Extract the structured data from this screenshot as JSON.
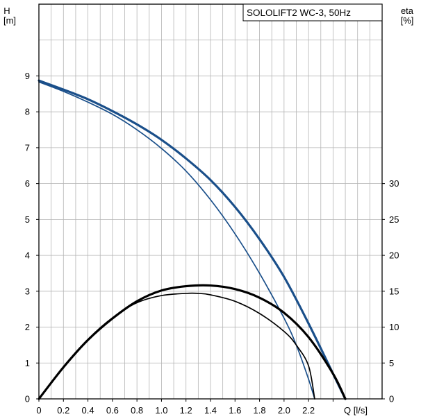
{
  "chart_data": {
    "type": "line",
    "title": "SOLOLIFT2 WC-3, 50Hz",
    "xlabel": "Q [l/s]",
    "ylabel_left": [
      "H",
      "[m]"
    ],
    "ylabel_right": [
      "eta",
      "[%]"
    ],
    "xlim": [
      0,
      2.8
    ],
    "ylim_left": [
      0,
      11
    ],
    "ylim_right": [
      0,
      55
    ],
    "x_ticks": [
      "0",
      "0.2",
      "0.4",
      "0.6",
      "0.8",
      "1.0",
      "1.2",
      "1.4",
      "1.6",
      "1.8",
      "2.0",
      "2.2",
      "2.4"
    ],
    "x_tick_values": [
      0,
      0.2,
      0.4,
      0.6,
      0.8,
      1.0,
      1.2,
      1.4,
      1.6,
      1.8,
      2.0,
      2.2,
      2.4
    ],
    "x_label_hidden_ticks": [
      "2.4"
    ],
    "y_ticks_left": [
      "0",
      "1",
      "2",
      "3",
      "4",
      "5",
      "6",
      "7",
      "8",
      "9"
    ],
    "y_tick_values_left": [
      0,
      1,
      2,
      3,
      4,
      5,
      6,
      7,
      8,
      9
    ],
    "y_ticks_right": [
      "0",
      "5",
      "10",
      "15",
      "20",
      "25",
      "30"
    ],
    "y_tick_values_right": [
      0,
      5,
      10,
      15,
      20,
      25,
      30
    ],
    "grid": true,
    "colors": {
      "head": "#1a4f8a",
      "efficiency": "#000000",
      "grid": "#b4b4b4"
    },
    "series": [
      {
        "axis": "left",
        "kind": "head",
        "weight": "thick",
        "x": [
          0,
          0.2,
          0.4,
          0.6,
          0.8,
          1.0,
          1.2,
          1.4,
          1.6,
          1.8,
          2.0,
          2.2,
          2.4,
          2.5
        ],
        "y": [
          8.87,
          8.62,
          8.35,
          8.02,
          7.65,
          7.22,
          6.7,
          6.1,
          5.35,
          4.45,
          3.4,
          2.1,
          0.7,
          0.0
        ]
      },
      {
        "axis": "left",
        "kind": "head",
        "weight": "thin",
        "x": [
          0,
          0.2,
          0.4,
          0.6,
          0.8,
          1.0,
          1.2,
          1.4,
          1.6,
          1.8,
          2.0,
          2.1,
          2.2,
          2.25
        ],
        "y": [
          8.83,
          8.57,
          8.27,
          7.93,
          7.5,
          6.98,
          6.35,
          5.55,
          4.6,
          3.5,
          2.25,
          1.5,
          0.55,
          0.0
        ]
      },
      {
        "axis": "right",
        "kind": "efficiency",
        "weight": "thick",
        "x": [
          0,
          0.2,
          0.4,
          0.6,
          0.8,
          1.0,
          1.2,
          1.4,
          1.6,
          1.8,
          2.0,
          2.2,
          2.4,
          2.5
        ],
        "y": [
          0,
          4.4,
          8.2,
          11.2,
          13.6,
          15.1,
          15.7,
          15.8,
          15.3,
          14.1,
          12.0,
          8.6,
          3.5,
          0.0
        ]
      },
      {
        "axis": "right",
        "kind": "efficiency",
        "weight": "thin",
        "x": [
          0,
          0.2,
          0.4,
          0.6,
          0.8,
          1.0,
          1.2,
          1.3,
          1.4,
          1.6,
          1.8,
          2.0,
          2.1,
          2.2,
          2.25
        ],
        "y": [
          0,
          4.5,
          8.3,
          11.3,
          13.4,
          14.4,
          14.7,
          14.7,
          14.5,
          13.6,
          11.9,
          9.4,
          7.5,
          4.6,
          0.0
        ]
      }
    ]
  }
}
